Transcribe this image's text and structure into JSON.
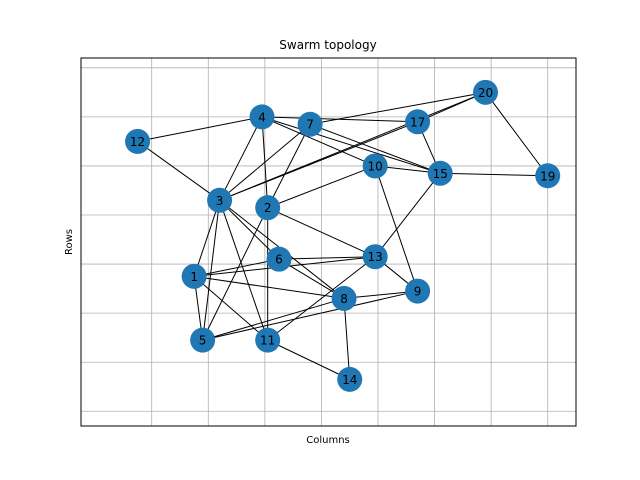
{
  "title": "Swarm topology",
  "xlabel": "Columns",
  "ylabel": "Rows",
  "node_color": "#1f77b4",
  "edge_color": "#000000",
  "grid_color": "#b0b0b0",
  "nodes": [
    {
      "id": "1",
      "x": 1.75,
      "y": 2.75
    },
    {
      "id": "2",
      "x": 3.05,
      "y": 4.15
    },
    {
      "id": "3",
      "x": 2.2,
      "y": 4.3
    },
    {
      "id": "4",
      "x": 2.95,
      "y": 6.0
    },
    {
      "id": "5",
      "x": 1.9,
      "y": 1.45
    },
    {
      "id": "6",
      "x": 3.25,
      "y": 3.1
    },
    {
      "id": "7",
      "x": 3.8,
      "y": 5.85
    },
    {
      "id": "8",
      "x": 4.4,
      "y": 2.3
    },
    {
      "id": "9",
      "x": 5.7,
      "y": 2.45
    },
    {
      "id": "10",
      "x": 4.95,
      "y": 5.0
    },
    {
      "id": "11",
      "x": 3.05,
      "y": 1.45
    },
    {
      "id": "12",
      "x": 0.75,
      "y": 5.5
    },
    {
      "id": "13",
      "x": 4.95,
      "y": 3.15
    },
    {
      "id": "14",
      "x": 4.5,
      "y": 0.65
    },
    {
      "id": "15",
      "x": 6.1,
      "y": 4.85
    },
    {
      "id": "17",
      "x": 5.7,
      "y": 5.9
    },
    {
      "id": "19",
      "x": 8.0,
      "y": 4.8
    },
    {
      "id": "20",
      "x": 6.9,
      "y": 6.5
    }
  ],
  "edges": [
    [
      "12",
      "4"
    ],
    [
      "12",
      "3"
    ],
    [
      "4",
      "3"
    ],
    [
      "4",
      "2"
    ],
    [
      "4",
      "17"
    ],
    [
      "4",
      "10"
    ],
    [
      "4",
      "15"
    ],
    [
      "7",
      "3"
    ],
    [
      "7",
      "2"
    ],
    [
      "7",
      "15"
    ],
    [
      "7",
      "20"
    ],
    [
      "3",
      "17"
    ],
    [
      "3",
      "20"
    ],
    [
      "3",
      "1"
    ],
    [
      "3",
      "5"
    ],
    [
      "3",
      "8"
    ],
    [
      "3",
      "11"
    ],
    [
      "3",
      "6"
    ],
    [
      "2",
      "10"
    ],
    [
      "2",
      "11"
    ],
    [
      "2",
      "13"
    ],
    [
      "2",
      "5"
    ],
    [
      "1",
      "6"
    ],
    [
      "1",
      "5"
    ],
    [
      "1",
      "8"
    ],
    [
      "1",
      "11"
    ],
    [
      "1",
      "13"
    ],
    [
      "6",
      "13"
    ],
    [
      "6",
      "8"
    ],
    [
      "5",
      "8"
    ],
    [
      "5",
      "9"
    ],
    [
      "8",
      "9"
    ],
    [
      "8",
      "14"
    ],
    [
      "11",
      "14"
    ],
    [
      "11",
      "13"
    ],
    [
      "13",
      "9"
    ],
    [
      "13",
      "15"
    ],
    [
      "10",
      "15"
    ],
    [
      "10",
      "9"
    ],
    [
      "15",
      "17"
    ],
    [
      "15",
      "19"
    ],
    [
      "17",
      "20"
    ],
    [
      "20",
      "19"
    ]
  ]
}
